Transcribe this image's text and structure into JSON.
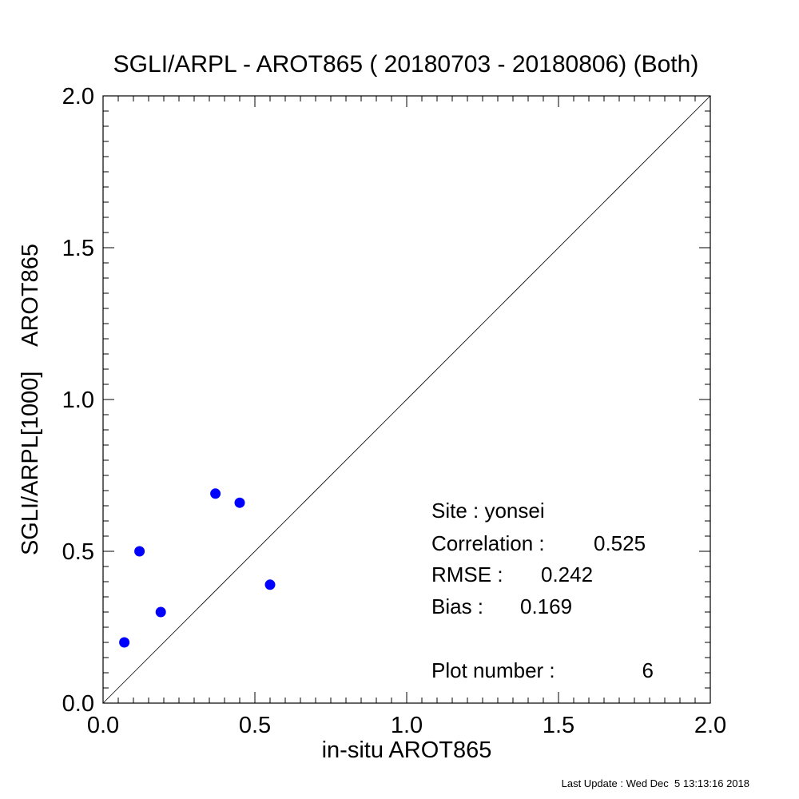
{
  "chart_data": {
    "type": "scatter",
    "title": "SGLI/ARPL - AROT865 ( 20180703 - 20180806) (Both)",
    "xlabel": "in-situ AROT865",
    "ylabel": "SGLI/ARPL[1000]    AROT865",
    "xlim": [
      0.0,
      2.0
    ],
    "ylim": [
      0.0,
      2.0
    ],
    "xticks": [
      "0.0",
      "0.5",
      "1.0",
      "1.5",
      "2.0"
    ],
    "yticks": [
      "0.0",
      "0.5",
      "1.0",
      "1.5",
      "2.0"
    ],
    "reference_line": "1:1",
    "point_color": "#0000ff",
    "points": [
      {
        "x": 0.07,
        "y": 0.2
      },
      {
        "x": 0.12,
        "y": 0.5
      },
      {
        "x": 0.19,
        "y": 0.3
      },
      {
        "x": 0.37,
        "y": 0.69
      },
      {
        "x": 0.45,
        "y": 0.66
      },
      {
        "x": 0.55,
        "y": 0.39
      }
    ],
    "annotations": {
      "site": "Site : yonsei",
      "correlation_label": "Correlation :",
      "correlation_value": "0.525",
      "rmse_label": "RMSE :",
      "rmse_value": "0.242",
      "bias_label": "Bias :",
      "bias_value": "0.169",
      "plot_number_label": "Plot number :",
      "plot_number_value": "6"
    }
  },
  "footer": "Last Update : Wed Dec  5 13:13:16 2018"
}
